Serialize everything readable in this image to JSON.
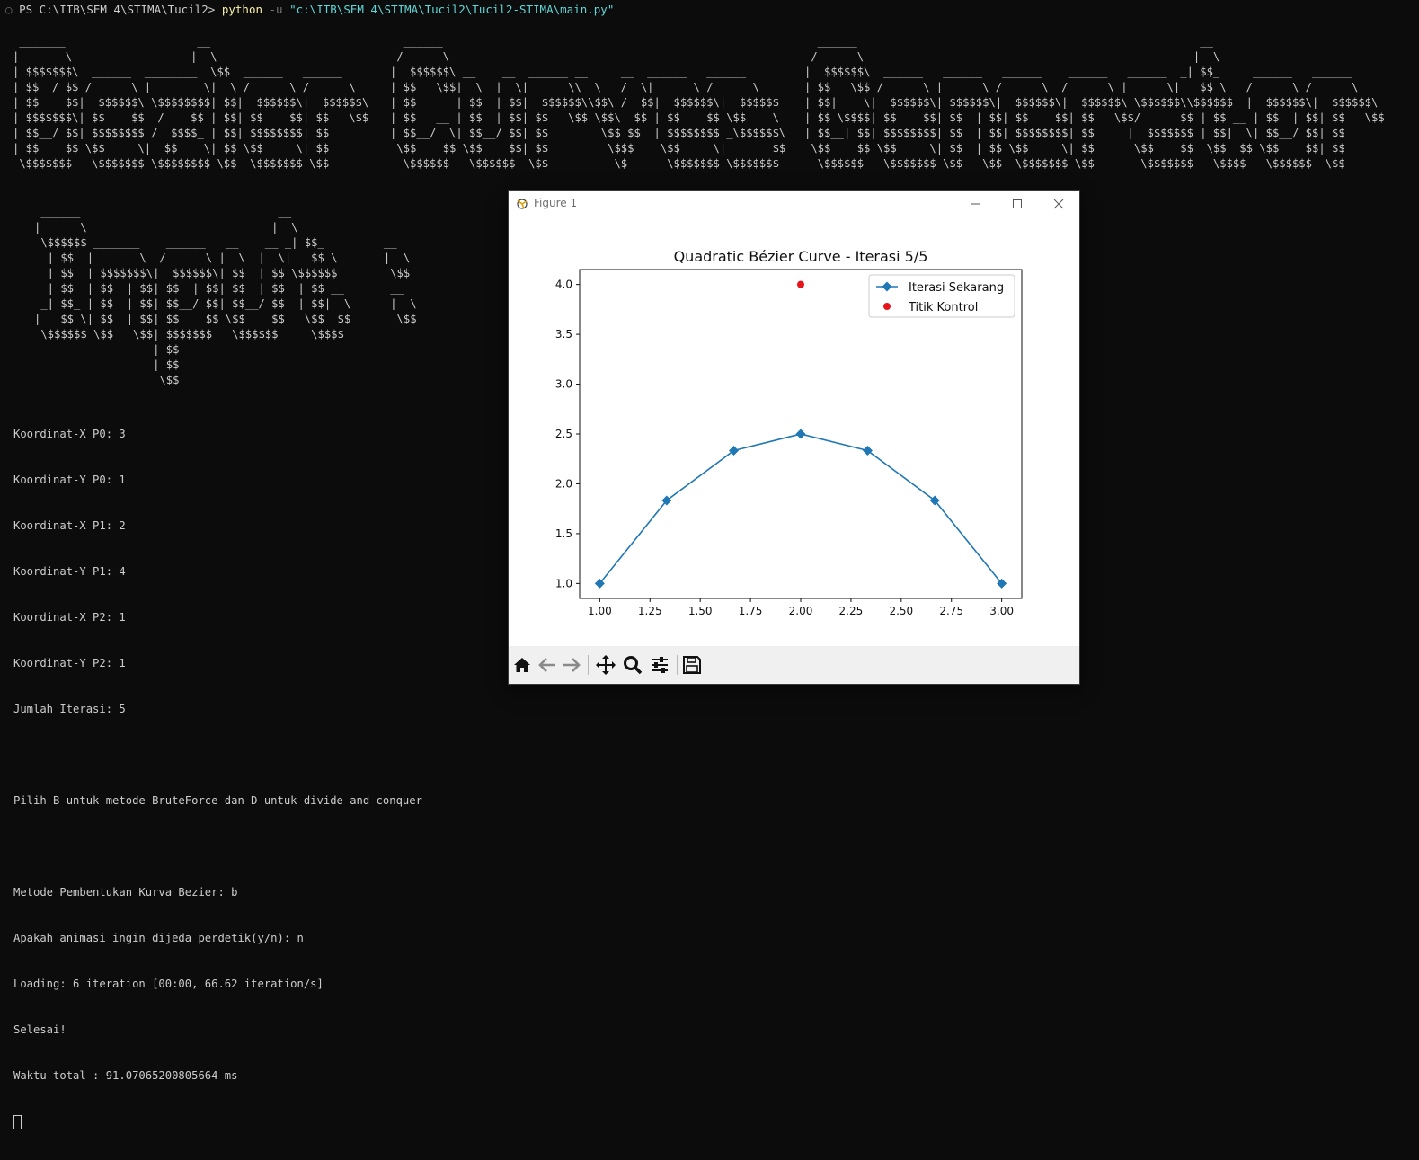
{
  "terminal": {
    "prompt": "PS C:\\ITB\\SEM 4\\STIMA\\Tucil2> ",
    "command": "python",
    "flag": " -u ",
    "argument": "\"c:\\ITB\\SEM 4\\STIMA\\Tucil2\\Tucil2-STIMA\\main.py\"",
    "banner_a": " _______                    __\n|       \\                  |  \\\n| $$$$$$$\\  ______  ________  \\$$  ______   ______\n| $$__/ $$ /      \\ |        \\|  \\ /      \\ /      \\\n| $$    $$|  $$$$$$\\ \\$$$$$$$$| $$|  $$$$$$\\|  $$$$$$\\\n| $$$$$$$\\| $$    $$  /    $$ | $$| $$    $$| $$   \\$$\n| $$__/ $$| $$$$$$$$ /  $$$$_ | $$| $$$$$$$$| $$\n| $$    $$ \\$$     \\|  $$    \\| $$ \\$$     \\| $$\n \\$$$$$$$   \\$$$$$$$ \\$$$$$$$$ \\$$  \\$$$$$$$ \\$$",
    "banner_b": "  ______\n /      \\\n|  $$$$$$\\ __    __  ______ __     __  ______   ______\n| $$   \\$$|  \\  |  \\|      \\\\  \\   /  \\|      \\ /      \\\n| $$      | $$  | $$|  $$$$$$\\\\$$\\ /  $$|  $$$$$$\\|  $$$$$$\n| $$   __ | $$  | $$| $$   \\$$ \\$$\\  $$ | $$    $$ \\$$    \\\n| $$__/  \\| $$__/ $$| $$        \\$$ $$  | $$$$$$$$ _\\$$$$$$\\\n \\$$    $$ \\$$    $$| $$         \\$$$    \\$$     \\|       $$\n  \\$$$$$$   \\$$$$$$  \\$$          \\$      \\$$$$$$$ \\$$$$$$$",
    "banner_c": "  ______                                                    __\n /      \\                                                  |  \\\n|  $$$$$$\\  ______   ______   ______    ______   ______  _| $$_     ______   ______\n| $$ __\\$$ /      \\ |      \\ /      \\  /      \\ |      \\|   $$ \\   /      \\ /      \\\n| $$|    \\|  $$$$$$\\| $$$$$$\\|  $$$$$$\\|  $$$$$$\\ \\$$$$$$\\\\$$$$$$  |  $$$$$$\\|  $$$$$$\\\n| $$ \\$$$$| $$    $$| $$  | $$| $$    $$| $$   \\$$/      $$ | $$ __ | $$  | $$| $$   \\$$\n| $$__| $$| $$$$$$$$| $$  | $$| $$$$$$$$| $$     |  $$$$$$$ | $$|  \\| $$__/ $$| $$\n \\$$    $$ \\$$     \\| $$  | $$ \\$$     \\| $$      \\$$    $$  \\$$  $$ \\$$    $$| $$\n  \\$$$$$$   \\$$$$$$$ \\$$   \\$$  \\$$$$$$$ \\$$       \\$$$$$$$   \\$$$$   \\$$$$$$  \\$$",
    "banner_d": " ______                              __\n|      \\                            |  \\\n \\$$$$$$ _______    ______   __    __ _| $$_         __\n  | $$  |       \\  /      \\ |  \\  |  \\|   $$ \\       |  \\\n  | $$  | $$$$$$$\\|  $$$$$$\\| $$  | $$ \\$$$$$$        \\$$\n  | $$  | $$  | $$| $$  | $$| $$  | $$  | $$ __       __\n _| $$_ | $$  | $$| $$__/ $$| $$__/ $$  | $$|  \\      |  \\\n|   $$ \\| $$  | $$| $$    $$ \\$$    $$   \\$$  $$       \\$$\n \\$$$$$$ \\$$   \\$$| $$$$$$$   \\$$$$$$     \\$$$$\n                  | $$\n                  | $$\n                   \\$$",
    "output_lines": [
      "Koordinat-X P0: 3",
      "Koordinat-Y P0: 1",
      "Koordinat-X P1: 2",
      "Koordinat-Y P1: 4",
      "Koordinat-X P2: 1",
      "Koordinat-Y P2: 1",
      "Jumlah Iterasi: 5",
      "",
      "Pilih B untuk metode BruteForce dan D untuk divide and conquer",
      "",
      "Metode Pembentukan Kurva Bezier: b",
      "Apakah animasi ingin dijeda perdetik(y/n): n",
      "Loading: 6 iteration [00:00, 66.62 iteration/s]",
      "Selesai!",
      "Waktu total : 91.07065200805664 ms"
    ]
  },
  "figure": {
    "window_title": "Figure 1",
    "icons": {
      "home": "home-icon",
      "back": "arrow-left-icon",
      "forward": "arrow-right-icon",
      "pan": "move-icon",
      "zoom": "magnifier-icon",
      "configure": "sliders-icon",
      "save": "floppy-disk-icon"
    }
  },
  "chart_data": {
    "type": "line",
    "title": "Quadratic Bézier Curve - Iterasi 5/5",
    "xlabel": "",
    "ylabel": "",
    "xlim": [
      0.9,
      3.1
    ],
    "ylim": [
      0.85,
      4.15
    ],
    "x_ticks": [
      "1.00",
      "1.25",
      "1.50",
      "1.75",
      "2.00",
      "2.25",
      "2.50",
      "2.75",
      "3.00"
    ],
    "y_ticks": [
      "1.0",
      "1.5",
      "2.0",
      "2.5",
      "3.0",
      "3.5",
      "4.0"
    ],
    "grid": false,
    "legend_position": "top-right",
    "series": [
      {
        "name": "Iterasi Sekarang",
        "color": "#1f77b4",
        "marker": "diamond",
        "x": [
          1.0,
          1.333,
          1.667,
          2.0,
          2.333,
          2.667,
          3.0
        ],
        "y": [
          1.0,
          1.833,
          2.333,
          2.5,
          2.333,
          1.833,
          1.0
        ]
      },
      {
        "name": "Titik Kontrol",
        "color": "#e8141b",
        "marker": "circle",
        "x": [
          2.0
        ],
        "y": [
          4.0
        ]
      }
    ]
  }
}
